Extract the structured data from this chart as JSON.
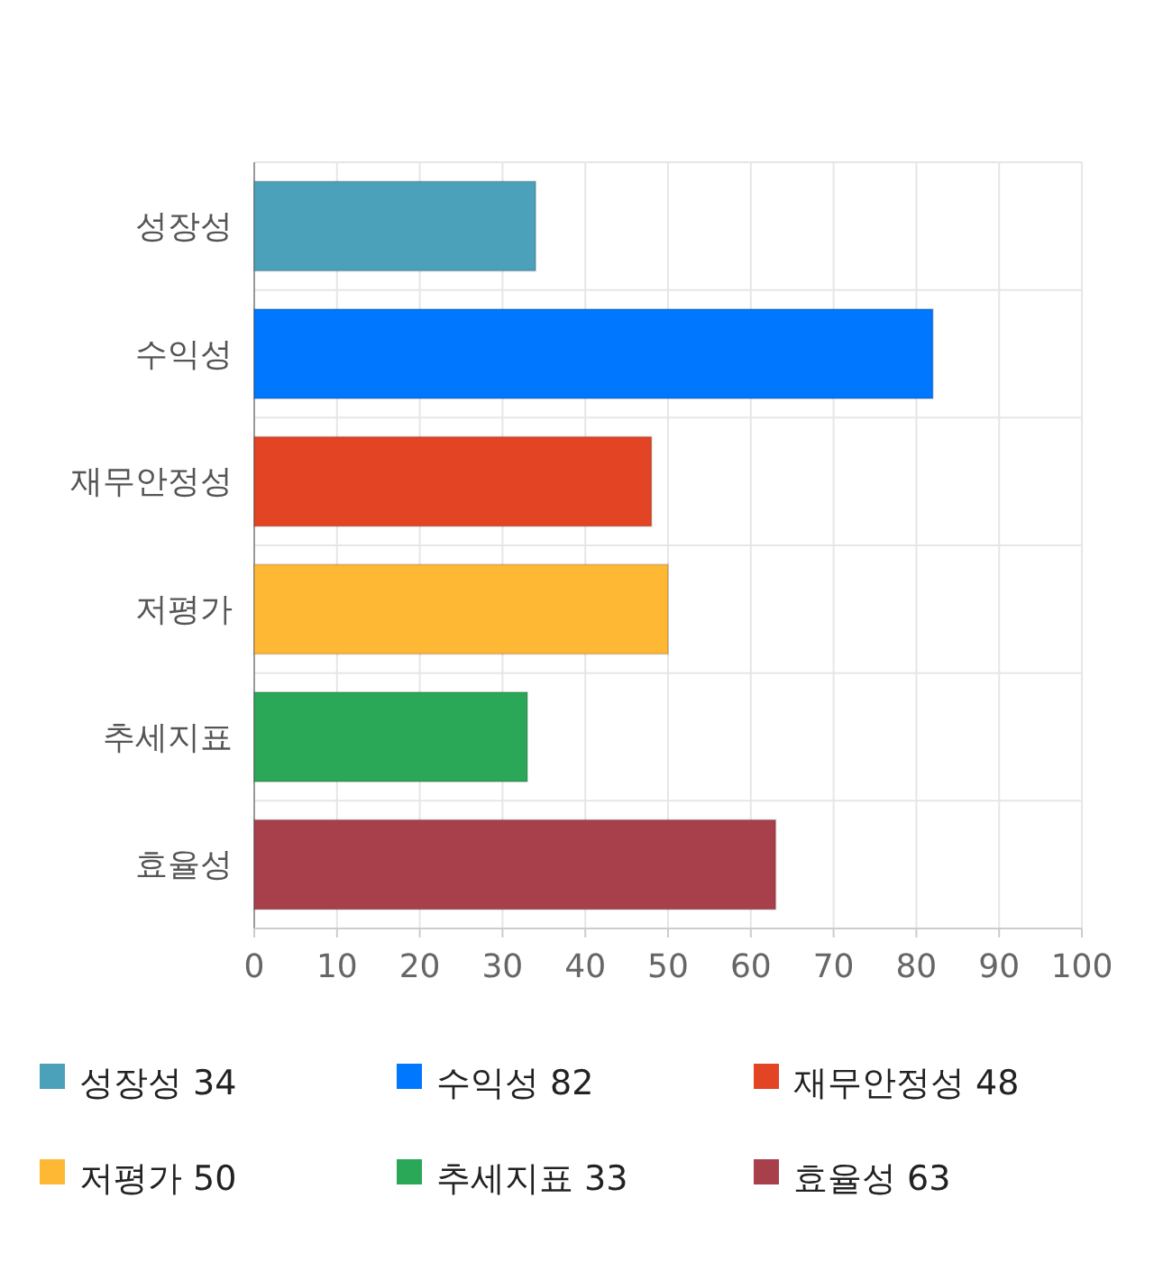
{
  "chart_data": {
    "type": "bar",
    "orientation": "horizontal",
    "stacked": true,
    "categories": [
      "성장성",
      "수익성",
      "재무안정성",
      "저평가",
      "추세지표",
      "효율성"
    ],
    "series": [
      {
        "name": "성장성 34",
        "color": "#4aa1b9",
        "values": [
          34,
          null,
          null,
          null,
          null,
          null
        ]
      },
      {
        "name": "수익성 82",
        "color": "#0077ff",
        "values": [
          null,
          82,
          null,
          null,
          null,
          null
        ]
      },
      {
        "name": "재무안정성 48",
        "color": "#e24424",
        "values": [
          null,
          null,
          48,
          null,
          null,
          null
        ]
      },
      {
        "name": "저평가 50",
        "color": "#ffb833",
        "values": [
          null,
          null,
          null,
          50,
          null,
          null
        ]
      },
      {
        "name": "추세지표 33",
        "color": "#2aa857",
        "values": [
          null,
          null,
          null,
          null,
          33,
          null
        ]
      },
      {
        "name": "효율성 63",
        "color": "#a8404c",
        "values": [
          null,
          null,
          null,
          null,
          null,
          63
        ]
      }
    ],
    "xlim": [
      0,
      100
    ],
    "xticks": [
      0,
      10,
      20,
      30,
      40,
      50,
      60,
      70,
      80,
      90,
      100
    ],
    "grid": true,
    "legend": "bottom"
  }
}
